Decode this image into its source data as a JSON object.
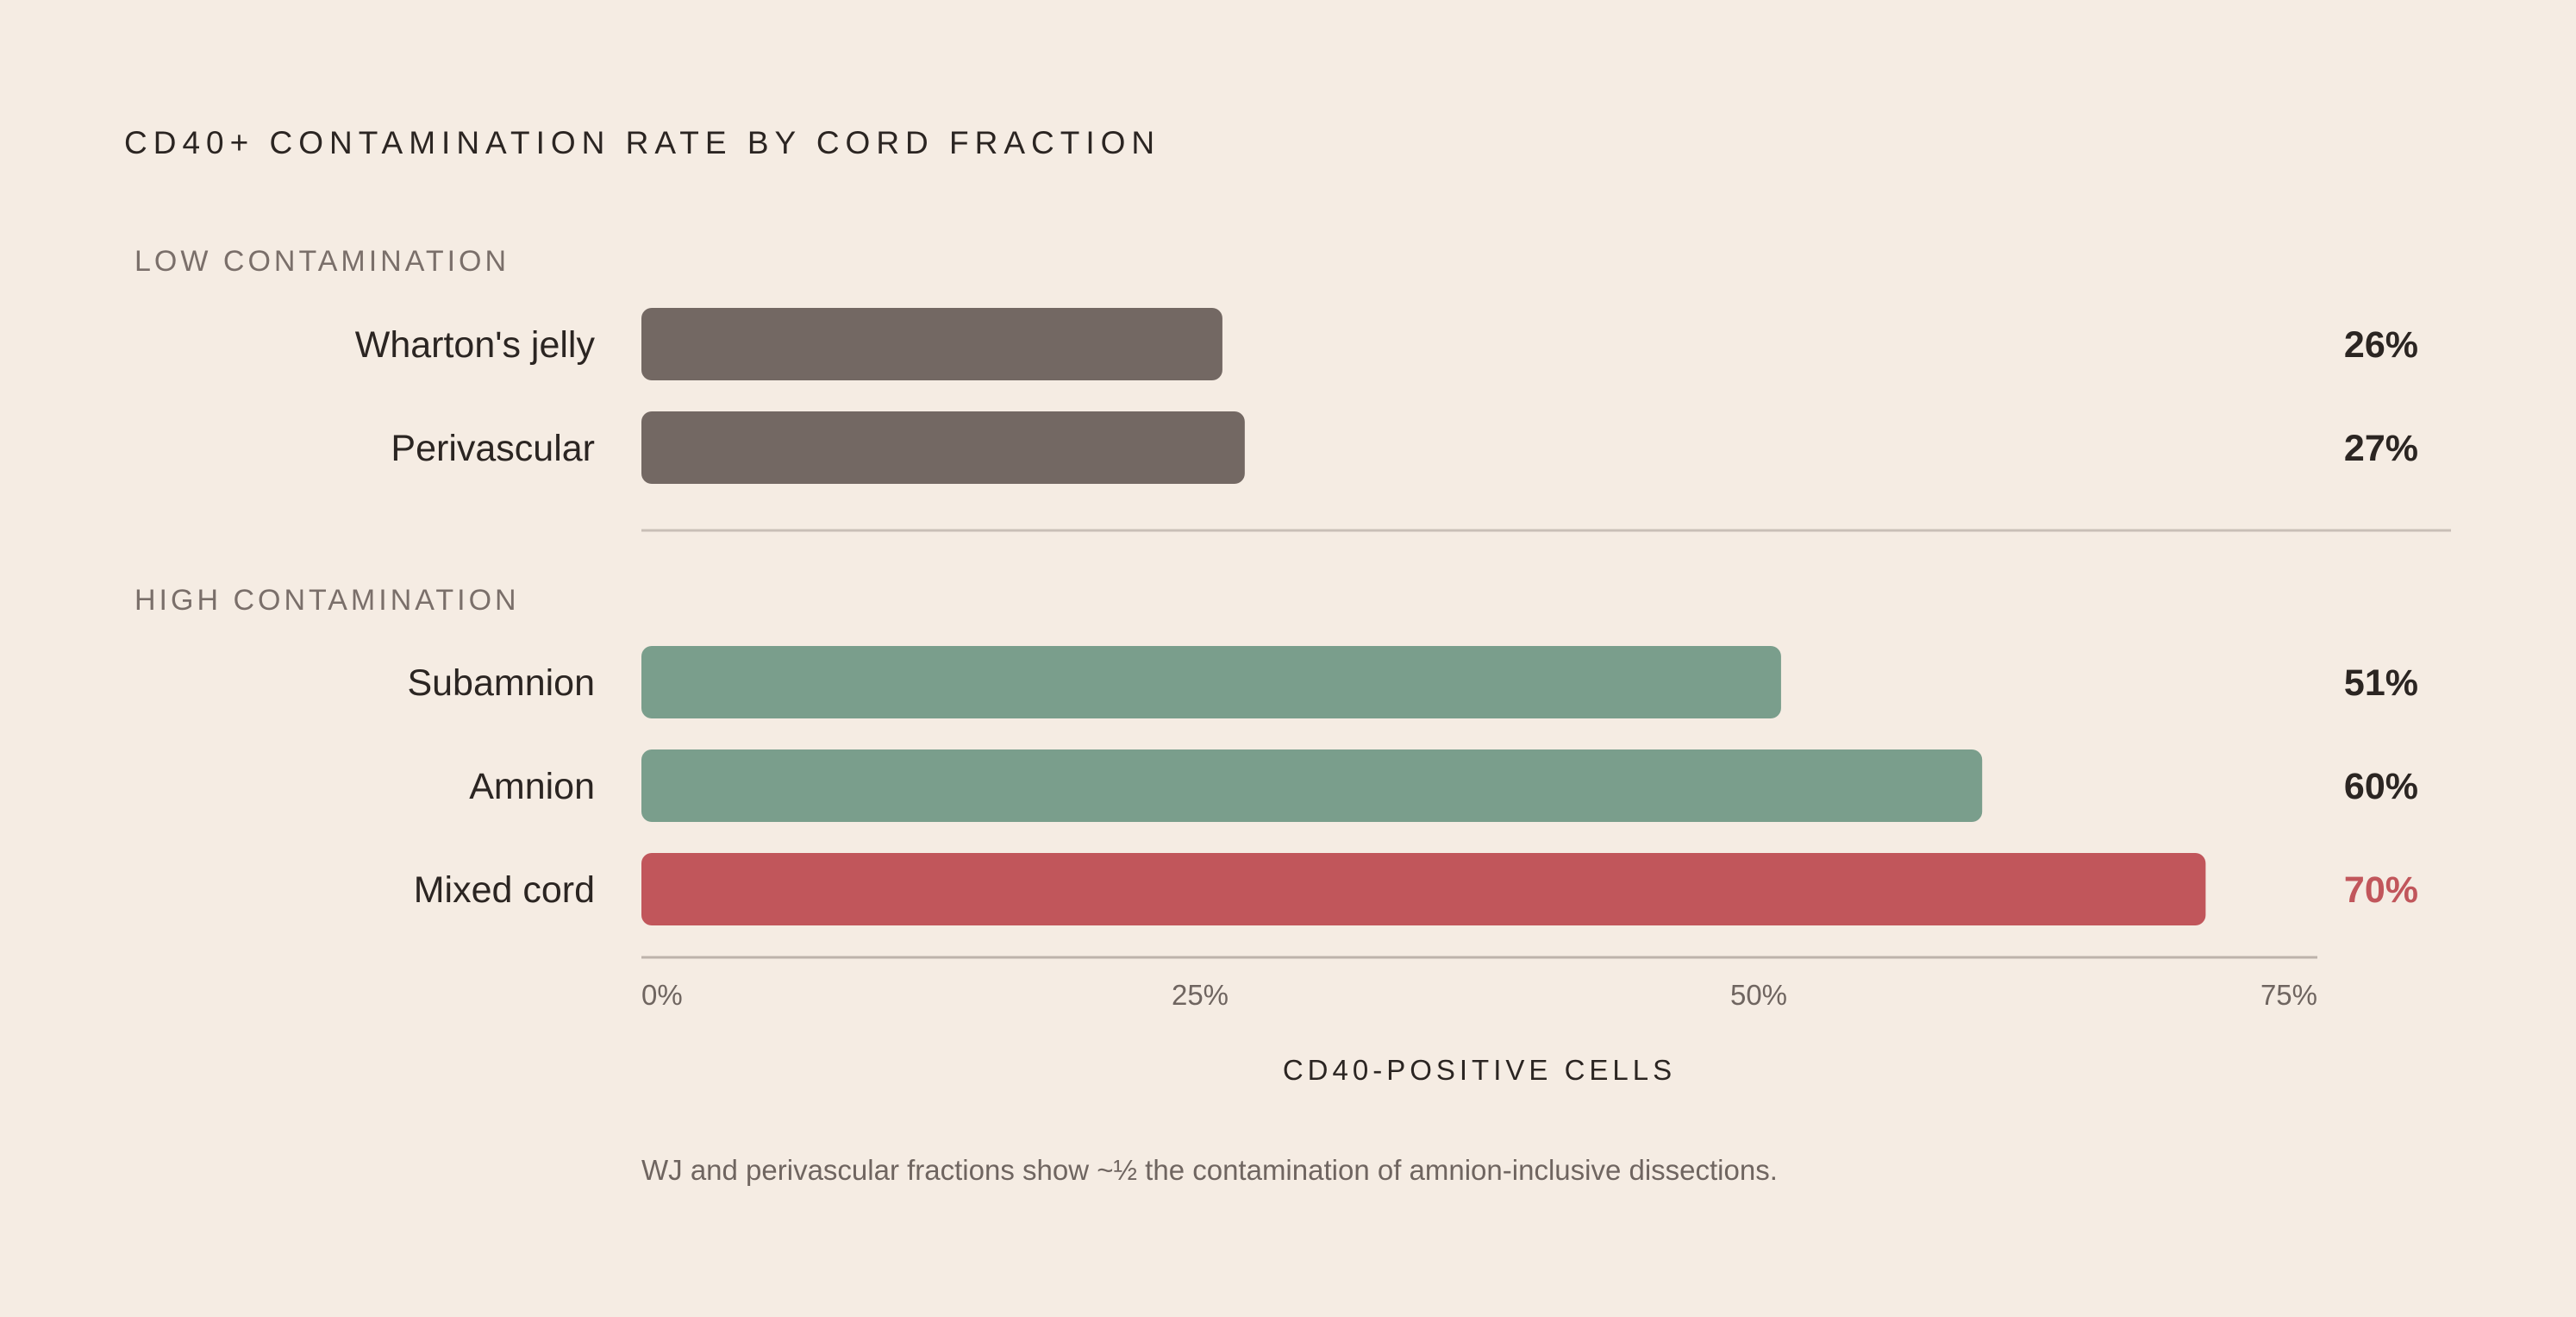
{
  "chart_data": {
    "type": "bar",
    "orientation": "horizontal",
    "title": "CD40+ CONTAMINATION RATE BY CORD FRACTION",
    "xlabel": "CD40-POSITIVE CELLS",
    "xlim": [
      0,
      75
    ],
    "x_ticks": [
      "0%",
      "25%",
      "50%",
      "75%"
    ],
    "x_tick_values": [
      0,
      25,
      50,
      75
    ],
    "groups": [
      {
        "label": "LOW CONTAMINATION",
        "items": [
          {
            "category": "Wharton's jelly",
            "value": 26,
            "value_label": "26%",
            "color": "#736863"
          },
          {
            "category": "Perivascular",
            "value": 27,
            "value_label": "27%",
            "color": "#736863"
          }
        ]
      },
      {
        "label": "HIGH CONTAMINATION",
        "items": [
          {
            "category": "Subamnion",
            "value": 51,
            "value_label": "51%",
            "color": "#7a9e8c"
          },
          {
            "category": "Amnion",
            "value": 60,
            "value_label": "60%",
            "color": "#7a9e8c"
          },
          {
            "category": "Mixed cord",
            "value": 70,
            "value_label": "70%",
            "color": "#c1565b"
          }
        ]
      }
    ],
    "note": "WJ and perivascular fractions show ~½ the contamination of amnion-inclusive dissections."
  }
}
